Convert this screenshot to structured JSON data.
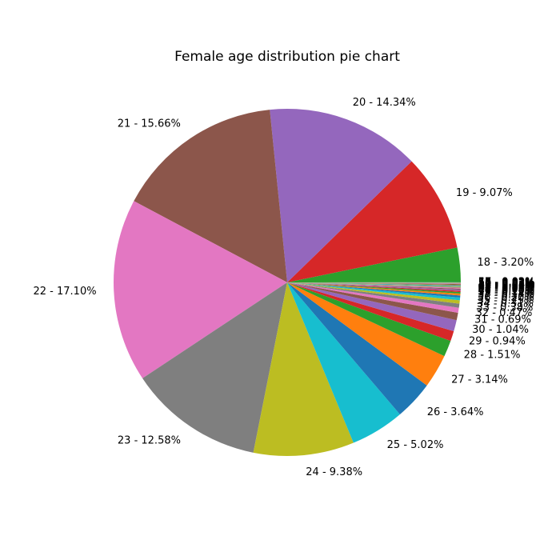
{
  "chart_data": {
    "type": "pie",
    "title": "Female age distribution pie chart",
    "start_angle_deg": 0,
    "direction": "counterclockwise",
    "slices": [
      {
        "label": "17 - 0.03%",
        "value": 0.03,
        "color": "#1f77b4"
      },
      {
        "label": "18 - 3.20%",
        "value": 3.2,
        "color": "#2ca02c"
      },
      {
        "label": "19 - 9.07%",
        "value": 9.07,
        "color": "#d62728"
      },
      {
        "label": "20 - 14.34%",
        "value": 14.34,
        "color": "#9467bd"
      },
      {
        "label": "21 - 15.66%",
        "value": 15.66,
        "color": "#8c564b"
      },
      {
        "label": "22 - 17.10%",
        "value": 17.1,
        "color": "#e377c2"
      },
      {
        "label": "23 - 12.58%",
        "value": 12.58,
        "color": "#7f7f7f"
      },
      {
        "label": "24 - 9.38%",
        "value": 9.38,
        "color": "#bcbd22"
      },
      {
        "label": "25 - 5.02%",
        "value": 5.02,
        "color": "#17becf"
      },
      {
        "label": "26 - 3.64%",
        "value": 3.64,
        "color": "#1f77b4"
      },
      {
        "label": "27 - 3.14%",
        "value": 3.14,
        "color": "#ff7f0e"
      },
      {
        "label": "28 - 1.51%",
        "value": 1.51,
        "color": "#2ca02c"
      },
      {
        "label": "29 - 0.94%",
        "value": 0.94,
        "color": "#d62728"
      },
      {
        "label": "30 - 1.04%",
        "value": 1.04,
        "color": "#9467bd"
      },
      {
        "label": "31 - 0.69%",
        "value": 0.69,
        "color": "#8c564b"
      },
      {
        "label": "32 - 0.47%",
        "value": 0.47,
        "color": "#e377c2"
      },
      {
        "label": "33 - 0.38%",
        "value": 0.38,
        "color": "#7f7f7f"
      },
      {
        "label": "34 - 0.31%",
        "value": 0.31,
        "color": "#bcbd22"
      },
      {
        "label": "35 - 0.25%",
        "value": 0.25,
        "color": "#17becf"
      },
      {
        "label": "36 - 0.20%",
        "value": 0.2,
        "color": "#1f77b4"
      },
      {
        "label": "37 - 0.17%",
        "value": 0.17,
        "color": "#ff7f0e"
      },
      {
        "label": "38 - 0.14%",
        "value": 0.14,
        "color": "#2ca02c"
      },
      {
        "label": "39 - 0.12%",
        "value": 0.12,
        "color": "#d62728"
      },
      {
        "label": "40 - 0.10%",
        "value": 0.1,
        "color": "#9467bd"
      },
      {
        "label": "41 - 0.09%",
        "value": 0.09,
        "color": "#8c564b"
      },
      {
        "label": "42 - 0.08%",
        "value": 0.08,
        "color": "#e377c2"
      },
      {
        "label": "43 - 0.07%",
        "value": 0.07,
        "color": "#7f7f7f"
      },
      {
        "label": "44 - 0.06%",
        "value": 0.06,
        "color": "#bcbd22"
      },
      {
        "label": "45 - 0.05%",
        "value": 0.05,
        "color": "#17becf"
      },
      {
        "label": "46 - 0.05%",
        "value": 0.05,
        "color": "#1f77b4"
      },
      {
        "label": "47 - 0.04%",
        "value": 0.04,
        "color": "#ff7f0e"
      },
      {
        "label": "48 - 0.04%",
        "value": 0.04,
        "color": "#2ca02c"
      },
      {
        "label": "49 - 0.03%",
        "value": 0.03,
        "color": "#d62728"
      },
      {
        "label": "50 - 0.03%",
        "value": 0.03,
        "color": "#9467bd"
      },
      {
        "label": "51 - 0.03%",
        "value": 0.03,
        "color": "#8c564b"
      },
      {
        "label": "52 - 0.02%",
        "value": 0.02,
        "color": "#e377c2"
      },
      {
        "label": "53 - 0.02%",
        "value": 0.02,
        "color": "#7f7f7f"
      },
      {
        "label": "54 - 0.02%",
        "value": 0.02,
        "color": "#bcbd22"
      },
      {
        "label": "55 - 0.02%",
        "value": 0.02,
        "color": "#17becf"
      },
      {
        "label": "56 - 0.01%",
        "value": 0.01,
        "color": "#1f77b4"
      },
      {
        "label": "57 - 0.01%",
        "value": 0.01,
        "color": "#ff7f0e"
      }
    ]
  }
}
